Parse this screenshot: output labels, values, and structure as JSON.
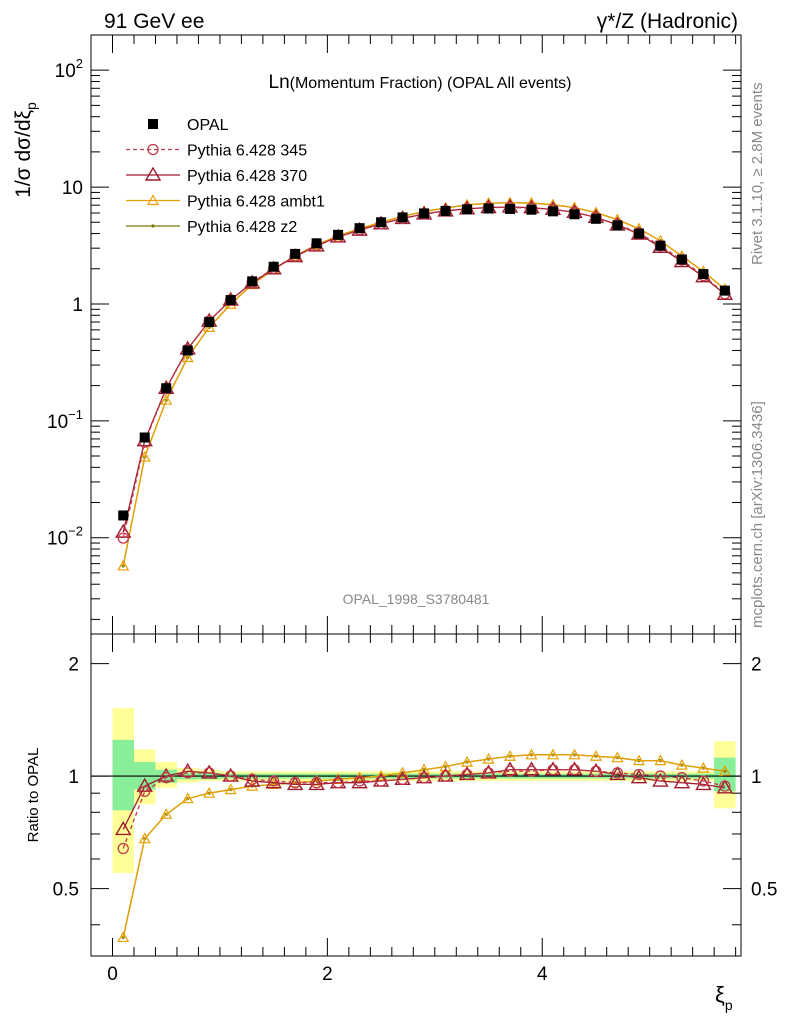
{
  "header": {
    "left": "91 GeV ee",
    "right": "γ*/Z (Hadronic)"
  },
  "side": {
    "rivet": "Rivet 3.1.10, ≥ 2.8M events",
    "mcplots": "mcplots.cern.ch [arXiv:1306.3436]"
  },
  "chart_data": [
    {
      "type": "line",
      "title": "Ln(Momentum Fraction) (OPAL All events)",
      "title_main": "Ln",
      "title_rest": "(Momentum Fraction) (OPAL All events)",
      "ylabel": "1/σ dσ/dξp",
      "ylabel_main": "1/σ dσ/dξ",
      "ylabel_sub": "p",
      "watermark": "OPAL_1998_S3780481",
      "yscale": "log",
      "xlim": [
        -0.2,
        5.85
      ],
      "ylim": [
        0.0015,
        200
      ],
      "y_ticks": [
        {
          "value": 0.01,
          "base": "10",
          "exp": "−2"
        },
        {
          "value": 0.1,
          "base": "10",
          "exp": "−1"
        },
        {
          "value": 1,
          "base": "1",
          "exp": ""
        },
        {
          "value": 10,
          "base": "10",
          "exp": ""
        },
        {
          "value": 100,
          "base": "10",
          "exp": "2"
        }
      ],
      "x": [
        0.1,
        0.3,
        0.5,
        0.7,
        0.9,
        1.1,
        1.3,
        1.5,
        1.7,
        1.9,
        2.1,
        2.3,
        2.5,
        2.7,
        2.9,
        3.1,
        3.3,
        3.5,
        3.7,
        3.9,
        4.1,
        4.3,
        4.5,
        4.7,
        4.9,
        5.1,
        5.3,
        5.5,
        5.7
      ],
      "data_series": {
        "name": "OPAL",
        "values": [
          0.0155,
          0.072,
          0.19,
          0.4,
          0.7,
          1.08,
          1.56,
          2.08,
          2.68,
          3.3,
          3.9,
          4.45,
          5.0,
          5.5,
          5.95,
          6.25,
          6.45,
          6.55,
          6.5,
          6.4,
          6.2,
          5.85,
          5.35,
          4.7,
          4.0,
          3.15,
          2.4,
          1.8,
          1.3
        ]
      },
      "series": [
        {
          "name": "Pythia 6.428 345",
          "color": "#c0394b",
          "marker": "circle",
          "dash": true,
          "ratio": [
            0.64,
            0.91,
            0.99,
            1.02,
            1.02,
            1.0,
            0.98,
            0.97,
            0.96,
            0.96,
            0.96,
            0.97,
            0.97,
            0.98,
            0.99,
            1.0,
            1.01,
            1.02,
            1.03,
            1.03,
            1.04,
            1.04,
            1.03,
            1.02,
            1.01,
            1.0,
            0.99,
            0.97,
            0.94
          ]
        },
        {
          "name": "Pythia 6.428 370",
          "color": "#9e1b2e",
          "marker": "triangle",
          "dash": false,
          "ratio": [
            0.72,
            0.94,
            1.0,
            1.03,
            1.02,
            1.0,
            0.97,
            0.96,
            0.95,
            0.95,
            0.96,
            0.96,
            0.97,
            0.98,
            0.99,
            1.0,
            1.01,
            1.02,
            1.04,
            1.04,
            1.04,
            1.04,
            1.03,
            1.01,
            0.99,
            0.97,
            0.96,
            0.95,
            0.93
          ]
        },
        {
          "name": "Pythia 6.428 ambt1",
          "color": "#e8a000",
          "marker": "triangle-small",
          "dash": false,
          "ratio": [
            0.37,
            0.68,
            0.79,
            0.87,
            0.9,
            0.92,
            0.94,
            0.95,
            0.96,
            0.97,
            0.98,
            0.99,
            1.0,
            1.02,
            1.04,
            1.06,
            1.09,
            1.11,
            1.13,
            1.14,
            1.14,
            1.14,
            1.13,
            1.12,
            1.1,
            1.1,
            1.07,
            1.05,
            1.03
          ]
        },
        {
          "name": "Pythia 6.428 z2",
          "color": "#7a7a00",
          "marker": "dot",
          "dash": false,
          "ratio": [
            0.37,
            0.68,
            0.79,
            0.87,
            0.9,
            0.92,
            0.94,
            0.95,
            0.96,
            0.97,
            0.98,
            0.99,
            1.0,
            1.02,
            1.04,
            1.06,
            1.09,
            1.11,
            1.13,
            1.14,
            1.14,
            1.14,
            1.13,
            1.12,
            1.1,
            1.1,
            1.07,
            1.05,
            1.03
          ]
        }
      ]
    },
    {
      "type": "line",
      "ylabel": "Ratio to OPAL",
      "xlabel": "ξp",
      "xlabel_main": "ξ",
      "xlabel_sub": "p",
      "yscale": "log",
      "xlim": [
        -0.2,
        5.85
      ],
      "ylim": [
        0.33,
        2.4
      ],
      "y_ticks": [
        {
          "value": 0.5,
          "label": "0.5"
        },
        {
          "value": 1,
          "label": "1"
        },
        {
          "value": 2,
          "label": "2"
        }
      ],
      "x_ticks": [
        {
          "value": 0,
          "label": "0"
        },
        {
          "value": 2,
          "label": "2"
        },
        {
          "value": 4,
          "label": "4"
        }
      ],
      "band_yellow": [
        [
          0.55,
          1.52
        ],
        [
          0.84,
          1.18
        ],
        [
          0.93,
          1.09
        ],
        [
          0.96,
          1.05
        ],
        [
          0.97,
          1.04
        ],
        [
          0.97,
          1.03
        ],
        [
          0.97,
          1.03
        ],
        [
          0.97,
          1.03
        ],
        [
          0.97,
          1.03
        ],
        [
          0.97,
          1.03
        ],
        [
          0.97,
          1.03
        ],
        [
          0.97,
          1.03
        ],
        [
          0.97,
          1.03
        ],
        [
          0.97,
          1.03
        ],
        [
          0.97,
          1.03
        ],
        [
          0.97,
          1.03
        ],
        [
          0.97,
          1.03
        ],
        [
          0.97,
          1.03
        ],
        [
          0.97,
          1.03
        ],
        [
          0.97,
          1.03
        ],
        [
          0.97,
          1.03
        ],
        [
          0.97,
          1.03
        ],
        [
          0.97,
          1.03
        ],
        [
          0.97,
          1.03
        ],
        [
          0.97,
          1.03
        ],
        [
          0.97,
          1.03
        ],
        [
          0.97,
          1.03
        ],
        [
          0.97,
          1.03
        ],
        [
          0.82,
          1.24
        ]
      ],
      "band_green": [
        [
          0.81,
          1.25
        ],
        [
          0.92,
          1.09
        ],
        [
          0.96,
          1.04
        ],
        [
          0.98,
          1.02
        ],
        [
          0.98,
          1.02
        ],
        [
          0.985,
          1.015
        ],
        [
          0.985,
          1.015
        ],
        [
          0.985,
          1.015
        ],
        [
          0.985,
          1.015
        ],
        [
          0.985,
          1.015
        ],
        [
          0.985,
          1.015
        ],
        [
          0.985,
          1.015
        ],
        [
          0.985,
          1.015
        ],
        [
          0.985,
          1.015
        ],
        [
          0.985,
          1.015
        ],
        [
          0.985,
          1.015
        ],
        [
          0.985,
          1.015
        ],
        [
          0.985,
          1.015
        ],
        [
          0.985,
          1.015
        ],
        [
          0.985,
          1.015
        ],
        [
          0.985,
          1.015
        ],
        [
          0.985,
          1.015
        ],
        [
          0.985,
          1.015
        ],
        [
          0.985,
          1.015
        ],
        [
          0.985,
          1.015
        ],
        [
          0.985,
          1.015
        ],
        [
          0.985,
          1.015
        ],
        [
          0.985,
          1.015
        ],
        [
          0.91,
          1.12
        ]
      ]
    }
  ]
}
